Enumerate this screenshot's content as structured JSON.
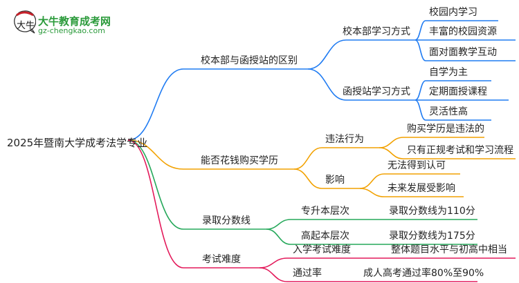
{
  "logo": {
    "title": "大牛教育成考网",
    "url": "gz-chengkao.com",
    "mark": "大牛"
  },
  "root": "2025年暨南大学成考法学专业",
  "colors": {
    "blue": "#1f7bf2",
    "orange": "#f2a100",
    "green": "#25a85a",
    "red": "#e3195a"
  },
  "branches": [
    {
      "label": "校本部与函授站的区别",
      "children": [
        {
          "label": "校本部学习方式",
          "children": [
            "校园内学习",
            "丰富的校园资源",
            "面对面教学互动"
          ]
        },
        {
          "label": "函授站学习方式",
          "children": [
            "自学为主",
            "定期面授课程",
            "灵活性高"
          ]
        }
      ]
    },
    {
      "label": "能否花钱购买学历",
      "children": [
        {
          "label": "违法行为",
          "children": [
            "购买学历是违法的",
            "只有正规考试和学习流程"
          ]
        },
        {
          "label": "影响",
          "children": [
            "无法得到认可",
            "未来发展受影响"
          ]
        }
      ]
    },
    {
      "label": "录取分数线",
      "children": [
        {
          "label": "专升本层次",
          "children": [
            "录取分数线为110分"
          ]
        },
        {
          "label": "高起本层次",
          "children": [
            "录取分数线为175分"
          ]
        }
      ]
    },
    {
      "label": "考试难度",
      "children": [
        {
          "label": "入学考试难度",
          "children": [
            "整体题目水平与初高中相当"
          ]
        },
        {
          "label": "通过率",
          "children": [
            "成人高考通过率80%至90%"
          ]
        }
      ]
    }
  ]
}
